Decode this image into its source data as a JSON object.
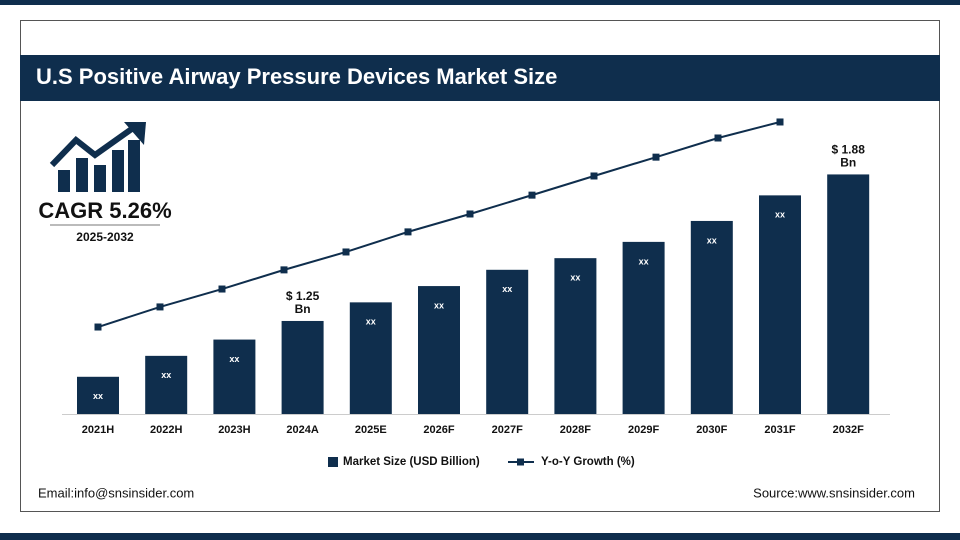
{
  "header": {
    "title": "U.S Positive Airway Pressure Devices Market Size"
  },
  "cagr": {
    "label": "CAGR 5.26%",
    "period": "2025-2032"
  },
  "footer": {
    "email": "Email:info@snsinsider.com",
    "source": "Source:www.snsinsider.com"
  },
  "chart_data": {
    "type": "bar",
    "categories": [
      "2021H",
      "2022H",
      "2023H",
      "2024A",
      "2025E",
      "2026F",
      "2027F",
      "2028F",
      "2029F",
      "2030F",
      "2031F",
      "2032F"
    ],
    "ylim": [
      0.85,
      2.2
    ],
    "y2lim": [
      0,
      100
    ],
    "series": [
      {
        "name": "Market Size (USD Billion)",
        "color": "#0f2e4d",
        "values": [
          1.01,
          1.1,
          1.17,
          1.25,
          1.33,
          1.4,
          1.47,
          1.52,
          1.59,
          1.68,
          1.79,
          1.88
        ],
        "value_labels": [
          "xx",
          "xx",
          "xx",
          "$ 1.25 Bn",
          "xx",
          "xx",
          "xx",
          "xx",
          "xx",
          "xx",
          "xx",
          "$ 1.88 Bn"
        ]
      },
      {
        "name": "Y-o-Y Growth (%)",
        "color": "#0f2e4d",
        "axis": "y2",
        "values": [
          27.7,
          34.1,
          39.8,
          45.9,
          51.6,
          58.0,
          63.7,
          69.7,
          75.8,
          81.8,
          87.9,
          93.0
        ]
      }
    ]
  }
}
